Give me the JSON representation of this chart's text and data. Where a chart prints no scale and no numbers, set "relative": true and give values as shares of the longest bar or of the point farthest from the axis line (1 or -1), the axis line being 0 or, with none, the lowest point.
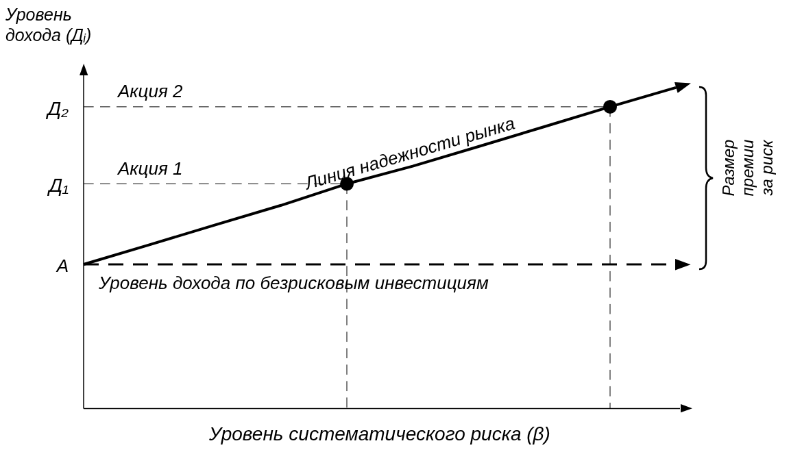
{
  "chart_data": {
    "type": "line",
    "relative": true,
    "ylabel": "Уровень\nдохода (Дᵢ)",
    "xlabel": "Уровень систематического риска (β)",
    "categories": [
      null,
      null,
      null,
      null,
      null,
      null,
      null,
      null,
      null,
      null
    ],
    "series": [
      {
        "name": "Линия надежности рынка",
        "color": "#000000",
        "values": [
          0.449,
          0.51,
          0.572,
          0.633,
          0.7,
          0.755,
          0.816,
          0.878,
          0.94,
          1.0
        ]
      },
      {
        "name": "Уровень дохода по безрисковым инвестициям",
        "color": "#000000",
        "line_style": "dashed",
        "values": [
          0.449,
          0.449,
          0.449,
          0.449,
          0.449,
          0.449,
          0.449,
          0.449,
          0.449,
          0.449
        ]
      }
    ],
    "ref_lines": [
      {
        "axis": "y",
        "value": 0.7,
        "label": "Д₁",
        "line_style": "dashed"
      },
      {
        "axis": "y",
        "value": 0.94,
        "label": "Д₂",
        "line_style": "dashed"
      }
    ],
    "annotations": [
      "Акция 1",
      "Акция 2",
      "A",
      "Размер премии за риск"
    ]
  }
}
